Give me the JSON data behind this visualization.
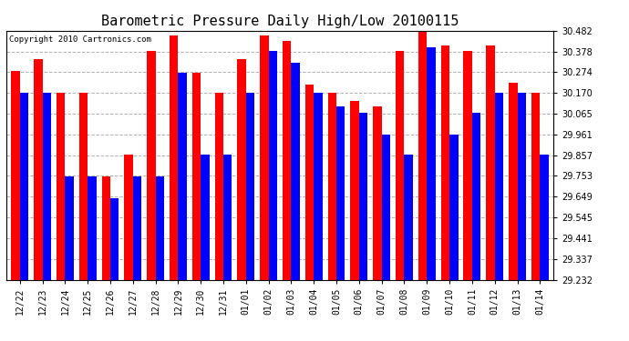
{
  "title": "Barometric Pressure Daily High/Low 20100115",
  "copyright": "Copyright 2010 Cartronics.com",
  "categories": [
    "12/22",
    "12/23",
    "12/24",
    "12/25",
    "12/26",
    "12/27",
    "12/28",
    "12/29",
    "12/30",
    "12/31",
    "01/01",
    "01/02",
    "01/03",
    "01/04",
    "01/05",
    "01/06",
    "01/07",
    "01/08",
    "01/09",
    "01/10",
    "01/11",
    "01/12",
    "01/13",
    "01/14"
  ],
  "highs": [
    30.28,
    30.34,
    30.17,
    30.17,
    29.75,
    29.86,
    30.38,
    30.46,
    30.27,
    30.17,
    30.34,
    30.46,
    30.43,
    30.21,
    30.17,
    30.13,
    30.1,
    30.38,
    30.48,
    30.41,
    30.38,
    30.41,
    30.22,
    30.17
  ],
  "lows": [
    30.17,
    30.17,
    29.75,
    29.75,
    29.64,
    29.75,
    29.75,
    30.27,
    29.86,
    29.86,
    30.17,
    30.38,
    30.32,
    30.17,
    30.1,
    30.07,
    29.96,
    29.86,
    30.4,
    29.96,
    30.07,
    30.17,
    30.17,
    29.86
  ],
  "high_color": "#FF0000",
  "low_color": "#0000FF",
  "bg_color": "#FFFFFF",
  "plot_bg_color": "#FFFFFF",
  "grid_color": "#AAAAAA",
  "y_min": 29.232,
  "y_max": 30.482,
  "y_ticks": [
    29.232,
    29.337,
    29.441,
    29.545,
    29.649,
    29.753,
    29.857,
    29.961,
    30.065,
    30.17,
    30.274,
    30.378,
    30.482
  ],
  "title_fontsize": 11,
  "tick_fontsize": 7,
  "copyright_fontsize": 6.5,
  "bar_width": 0.38
}
